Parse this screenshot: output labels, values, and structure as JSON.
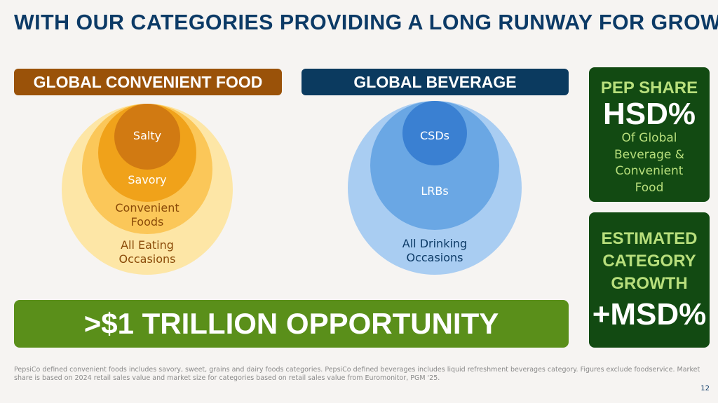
{
  "title": "WITH OUR CATEGORIES PROVIDING A LONG RUNWAY FOR GROWTH",
  "food": {
    "header": "GLOBAL CONVENIENT FOOD",
    "layers": [
      "Salty",
      "Savory",
      "Convenient Foods",
      "All Eating Occasions"
    ],
    "colors": [
      "#d17a12",
      "#f0a21a",
      "#fbc759",
      "#fde6a6"
    ],
    "header_color": "#9a5209"
  },
  "beverage": {
    "header": "GLOBAL BEVERAGE",
    "layers": [
      "CSDs",
      "LRBs",
      "All Drinking Occasions"
    ],
    "colors": [
      "#3a80d2",
      "#6aa7e4",
      "#a9cdf2"
    ],
    "header_color": "#0b3a5f"
  },
  "share_box": {
    "label": "PEP SHARE",
    "value": "HSD%",
    "desc": "Of Global Beverage & Convenient Food"
  },
  "growth_box": {
    "label": "ESTIMATED CATEGORY GROWTH",
    "value": "+MSD%"
  },
  "opportunity": ">$1 TRILLION OPPORTUNITY",
  "footnote": "PepsiCo defined convenient foods includes savory, sweet, grains and dairy foods categories. PepsiCo defined beverages includes liquid refreshment beverages category. Figures exclude foodservice. Market share is based on 2024 retail sales value and market size for categories based on retail sales value from Euromonitor, PGM '25.",
  "page_number": "12"
}
